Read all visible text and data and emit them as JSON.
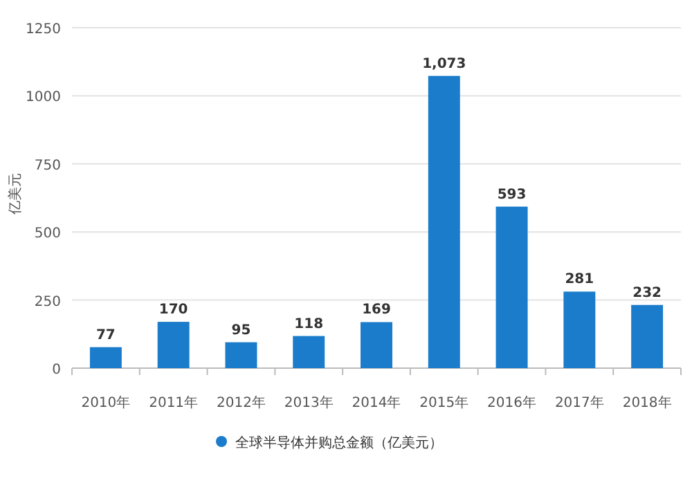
{
  "chart_data": {
    "type": "bar",
    "ylabel": "亿美元",
    "categories": [
      "2010年",
      "2011年",
      "2012年",
      "2013年",
      "2014年",
      "2015年",
      "2016年",
      "2017年",
      "2018年"
    ],
    "series": [
      {
        "name": "全球半导体并购总金额（亿美元）",
        "color": "#1a7ccb",
        "values": [
          77,
          170,
          95,
          118,
          169,
          1073,
          593,
          281,
          232
        ],
        "value_labels": [
          "77",
          "170",
          "95",
          "118",
          "169",
          "1,073",
          "593",
          "281",
          "232"
        ]
      }
    ],
    "ylim": [
      0,
      1250
    ],
    "yticks": [
      0,
      250,
      500,
      750,
      1000,
      1250
    ],
    "grid": "y",
    "legend": "bottom"
  }
}
